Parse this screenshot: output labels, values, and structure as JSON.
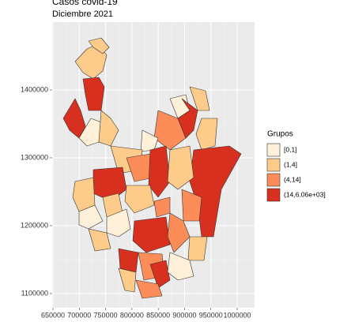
{
  "map": {
    "title": "Casos covid-19",
    "subtitle": "Diciembre 2021",
    "xlim": [
      648500,
      1033000
    ],
    "ylim": [
      1079000,
      1500000
    ],
    "xticks": [
      650000,
      700000,
      750000,
      800000,
      850000,
      900000,
      950000,
      1000000
    ],
    "yticks": [
      1100000,
      1200000,
      1300000,
      1400000
    ],
    "legend": {
      "title": "Grupos",
      "items": [
        {
          "label": "[0,1]",
          "color": "#fef0d9"
        },
        {
          "label": "(1,4]",
          "color": "#fdcc8a"
        },
        {
          "label": "(4,14]",
          "color": "#fc8d59"
        },
        {
          "label": "(14,6.06e+03]",
          "color": "#d7301f"
        }
      ]
    }
  }
}
